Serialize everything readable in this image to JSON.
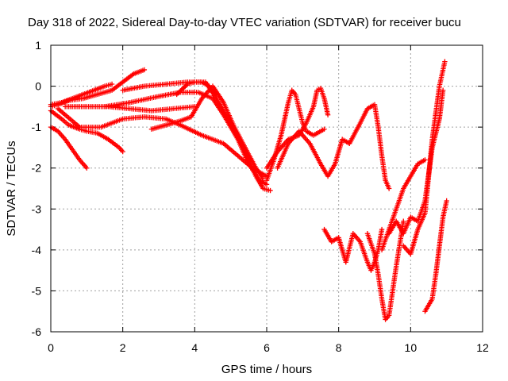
{
  "chart_data": {
    "type": "scatter",
    "title": "Day 318 of 2022, Sidereal Day-to-day VTEC variation (SDTVAR) for receiver bucu",
    "xlabel": "GPS time / hours",
    "ylabel": "SDTVAR / TECUs",
    "xlim": [
      0,
      12
    ],
    "ylim": [
      -6,
      1
    ],
    "xticks": [
      "0",
      "2",
      "4",
      "6",
      "8",
      "10",
      "12"
    ],
    "yticks": [
      "1",
      "0",
      "-1",
      "-2",
      "-3",
      "-4",
      "-5",
      "-6"
    ],
    "grid": true,
    "marker": "+",
    "color": "#ff0000",
    "series": [
      {
        "x": [
          0.0,
          0.3,
          0.6,
          0.9,
          1.2,
          1.5,
          1.7
        ],
        "y": [
          -0.45,
          -0.4,
          -0.3,
          -0.2,
          -0.1,
          0.0,
          0.05
        ]
      },
      {
        "x": [
          0.0,
          0.2,
          0.5,
          0.9,
          1.3,
          1.7,
          2.0,
          2.3,
          2.6
        ],
        "y": [
          -0.5,
          -0.45,
          -0.35,
          -0.3,
          -0.2,
          -0.1,
          0.1,
          0.3,
          0.4
        ]
      },
      {
        "x": [
          0.0,
          0.2,
          0.4,
          0.6,
          0.8,
          1.0
        ],
        "y": [
          -1.0,
          -1.1,
          -1.3,
          -1.55,
          -1.8,
          -2.0
        ]
      },
      {
        "x": [
          0.0,
          0.3,
          0.5,
          0.8,
          1.0,
          1.3,
          1.6,
          1.9,
          2.0
        ],
        "y": [
          -0.6,
          -0.8,
          -0.95,
          -1.05,
          -1.1,
          -1.15,
          -1.3,
          -1.5,
          -1.6
        ]
      },
      {
        "x": [
          0.4,
          1.0,
          1.6,
          2.2,
          2.8,
          3.4,
          4.0
        ],
        "y": [
          -0.5,
          -0.5,
          -0.5,
          -0.55,
          -0.6,
          -0.55,
          -0.5
        ]
      },
      {
        "x": [
          0.2,
          0.8,
          1.4,
          2.0,
          2.6,
          3.2,
          3.6,
          4.2,
          4.8,
          5.2,
          5.6,
          6.0
        ],
        "y": [
          -0.55,
          -1.0,
          -1.0,
          -0.8,
          -0.75,
          -0.8,
          -0.95,
          -1.2,
          -1.4,
          -1.7,
          -2.0,
          -2.2
        ]
      },
      {
        "x": [
          1.5,
          2.2,
          3.0,
          3.6,
          4.1,
          4.5,
          4.8,
          5.2,
          5.5,
          5.8,
          6.0
        ],
        "y": [
          -0.5,
          -0.4,
          -0.25,
          -0.15,
          -0.15,
          -0.3,
          -0.7,
          -1.3,
          -1.9,
          -2.3,
          -2.4
        ]
      },
      {
        "x": [
          2.0,
          2.6,
          3.2,
          3.8,
          4.3,
          4.6,
          5.0,
          5.4,
          5.7,
          5.9,
          6.1
        ],
        "y": [
          -0.1,
          0.0,
          0.05,
          0.1,
          0.1,
          -0.3,
          -0.9,
          -1.6,
          -2.2,
          -2.5,
          -2.55
        ]
      },
      {
        "x": [
          2.8,
          3.2,
          3.6,
          3.9,
          4.2,
          4.5,
          4.8,
          5.1,
          5.4,
          5.7,
          5.9
        ],
        "y": [
          -1.05,
          -0.95,
          -0.85,
          -0.75,
          -0.3,
          0.0,
          -0.4,
          -1.0,
          -1.5,
          -2.0,
          -2.25
        ]
      },
      {
        "x": [
          3.5,
          3.8,
          4.0,
          4.2,
          4.4,
          4.6
        ],
        "y": [
          -0.2,
          0.05,
          0.1,
          0.1,
          0.0,
          -0.2
        ]
      },
      {
        "x": [
          6.0,
          6.2,
          6.4,
          6.5,
          6.6,
          6.7,
          6.8,
          6.9,
          7.0,
          7.1,
          7.3,
          7.6
        ],
        "y": [
          -2.3,
          -1.8,
          -1.2,
          -0.8,
          -0.4,
          -0.1,
          -0.2,
          -0.55,
          -0.9,
          -1.1,
          -1.2,
          -1.05
        ]
      },
      {
        "x": [
          6.0,
          6.3,
          6.6,
          6.9,
          7.1,
          7.3,
          7.4,
          7.5,
          7.6,
          7.7
        ],
        "y": [
          -2.0,
          -1.6,
          -1.3,
          -1.2,
          -0.9,
          -0.5,
          -0.1,
          -0.05,
          -0.3,
          -0.7
        ]
      },
      {
        "x": [
          6.3,
          6.6,
          6.9,
          7.2,
          7.5,
          7.7,
          7.9,
          8.1,
          8.3
        ],
        "y": [
          -2.0,
          -1.4,
          -1.1,
          -1.4,
          -1.9,
          -2.2,
          -1.9,
          -1.3,
          -1.4
        ]
      },
      {
        "x": [
          8.3,
          8.6,
          8.8,
          9.0,
          9.1,
          9.2,
          9.3,
          9.4
        ],
        "y": [
          -1.4,
          -0.9,
          -0.55,
          -0.45,
          -1.0,
          -1.7,
          -2.3,
          -2.5
        ]
      },
      {
        "x": [
          7.6,
          7.8,
          8.0,
          8.2,
          8.4,
          8.6,
          8.8,
          8.9,
          9.0,
          9.1,
          9.2
        ],
        "y": [
          -3.5,
          -3.8,
          -3.7,
          -4.3,
          -3.6,
          -3.8,
          -4.3,
          -4.5,
          -4.3,
          -4.0,
          -3.5
        ]
      },
      {
        "x": [
          8.8,
          9.0,
          9.1,
          9.2,
          9.3,
          9.4,
          9.6,
          9.8
        ],
        "y": [
          -3.6,
          -4.1,
          -4.6,
          -5.2,
          -5.7,
          -5.6,
          -4.4,
          -3.3
        ]
      },
      {
        "x": [
          9.2,
          9.4,
          9.6,
          9.8,
          10.0,
          10.2,
          10.4
        ],
        "y": [
          -4.0,
          -3.5,
          -3.0,
          -2.5,
          -2.2,
          -1.9,
          -1.8
        ]
      },
      {
        "x": [
          9.4,
          9.6,
          9.8,
          10.0,
          10.2,
          10.4,
          10.6,
          10.8,
          10.9
        ],
        "y": [
          -3.6,
          -3.3,
          -3.6,
          -3.2,
          -3.3,
          -2.8,
          -1.5,
          -0.8,
          -0.1
        ]
      },
      {
        "x": [
          9.8,
          10.0,
          10.2,
          10.4,
          10.6,
          10.8,
          10.95
        ],
        "y": [
          -3.9,
          -4.1,
          -3.5,
          -3.1,
          -1.3,
          0.0,
          0.6
        ]
      },
      {
        "x": [
          10.4,
          10.6,
          10.7,
          10.8,
          10.9,
          11.0
        ],
        "y": [
          -5.5,
          -5.2,
          -4.6,
          -3.9,
          -3.2,
          -2.8
        ]
      }
    ]
  }
}
